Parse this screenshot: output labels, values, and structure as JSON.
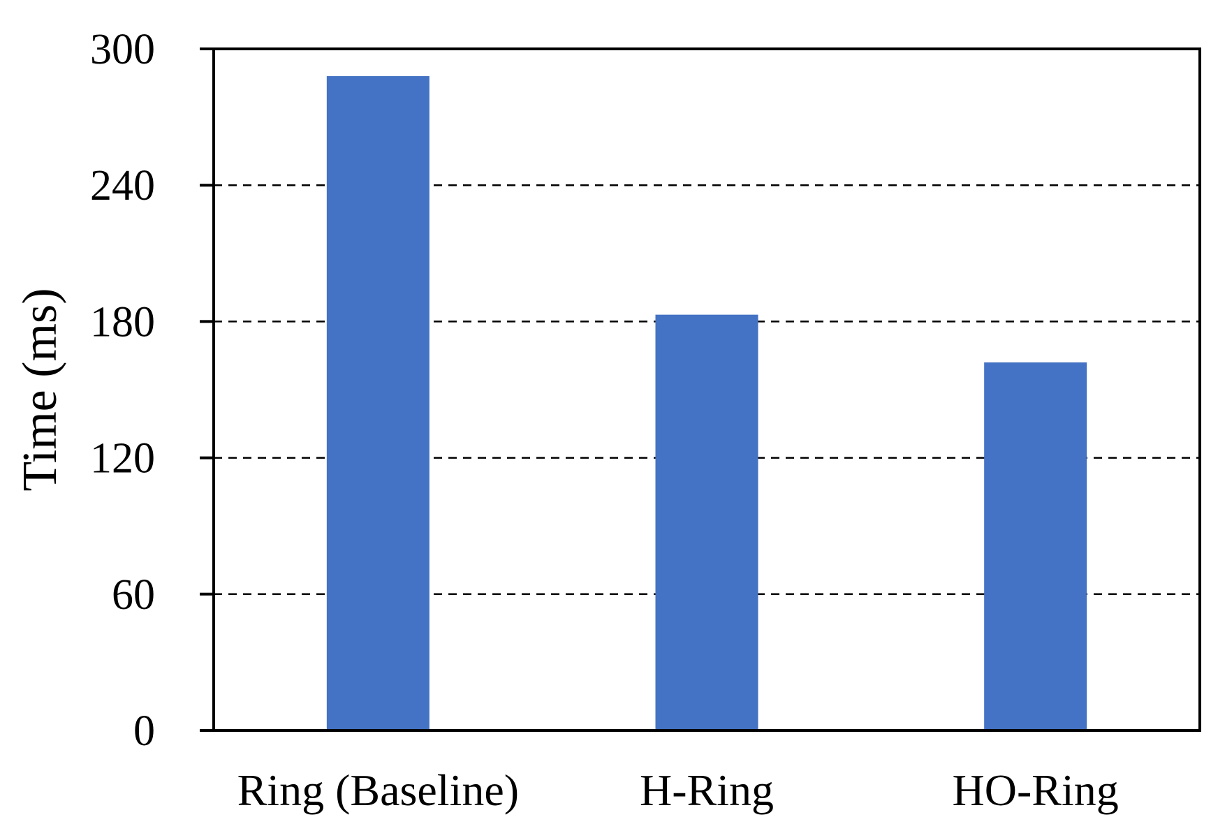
{
  "chart_data": {
    "type": "bar",
    "title": "",
    "xlabel": "",
    "ylabel": "Time (ms)",
    "categories": [
      "Ring (Baseline)",
      "H-Ring",
      "HO-Ring"
    ],
    "values": [
      288,
      183,
      162
    ],
    "ylim": [
      0,
      300
    ],
    "yticks": [
      0,
      60,
      120,
      180,
      240,
      300
    ],
    "grid": "horizontal dashed",
    "bar_color": "#4472C4"
  }
}
